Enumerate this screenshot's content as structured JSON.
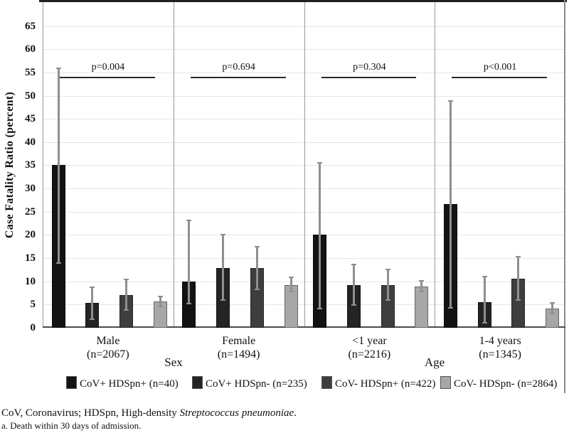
{
  "figure": {
    "footnote_line1_prefix": "CoV, Coronavirus; HDSpn, High-density ",
    "footnote_line1_italic": "Streptococcus pneumoniae",
    "footnote_line1_suffix": ".",
    "footnote_line2": "a. Death within 30 days of admission."
  },
  "chart_data": {
    "type": "bar",
    "title": "",
    "ylabel": "Case Fatality Ratio (percent)",
    "xlabel": "",
    "ylim": [
      0,
      70
    ],
    "yticks": [
      0,
      5,
      10,
      15,
      20,
      25,
      30,
      35,
      40,
      45,
      50,
      55,
      60,
      65
    ],
    "grid": true,
    "legend_position": "bottom",
    "error_bar_color": "#8f8f8f",
    "p_line_value": 54,
    "axis_section_labels": [
      "Sex",
      "Age"
    ],
    "series": [
      {
        "name": "CoV+ HDSpn+ (n=40)",
        "color": "#131313"
      },
      {
        "name": "CoV+ HDSpn- (n=235)",
        "color": "#242424"
      },
      {
        "name": "CoV- HDSpn+ (n=422)",
        "color": "#3e3e3e"
      },
      {
        "name": "CoV- HDSpn- (n=2864)",
        "color": "#a7a7a7"
      }
    ],
    "groups": [
      {
        "label": "Male",
        "n_label": "(n=2067)",
        "p_label": "p=0.004",
        "values": [
          35.0,
          5.3,
          7.0,
          5.6
        ],
        "ci_low": [
          14.0,
          1.9,
          3.9,
          4.6
        ],
        "ci_high": [
          55.9,
          8.8,
          10.4,
          6.7
        ]
      },
      {
        "label": "Female",
        "n_label": "(n=1494)",
        "p_label": "p=0.694",
        "values": [
          10.0,
          12.9,
          12.8,
          9.2
        ],
        "ci_low": [
          5.2,
          5.9,
          8.2,
          7.8
        ],
        "ci_high": [
          23.1,
          20.1,
          17.5,
          10.8
        ]
      },
      {
        "label": "<1 year",
        "n_label": "(n=2216)",
        "p_label": "p=0.304",
        "values": [
          20.0,
          9.2,
          9.2,
          8.9
        ],
        "ci_low": [
          4.2,
          4.9,
          5.9,
          7.8
        ],
        "ci_high": [
          35.5,
          13.6,
          12.6,
          10.1
        ]
      },
      {
        "label": "1-4 years",
        "n_label": "(n=1345)",
        "p_label": "p<0.001",
        "values": [
          26.6,
          5.5,
          10.5,
          4.2
        ],
        "ci_low": [
          4.3,
          1.0,
          5.9,
          3.1
        ],
        "ci_high": [
          48.9,
          11.0,
          15.3,
          5.4
        ]
      }
    ]
  }
}
